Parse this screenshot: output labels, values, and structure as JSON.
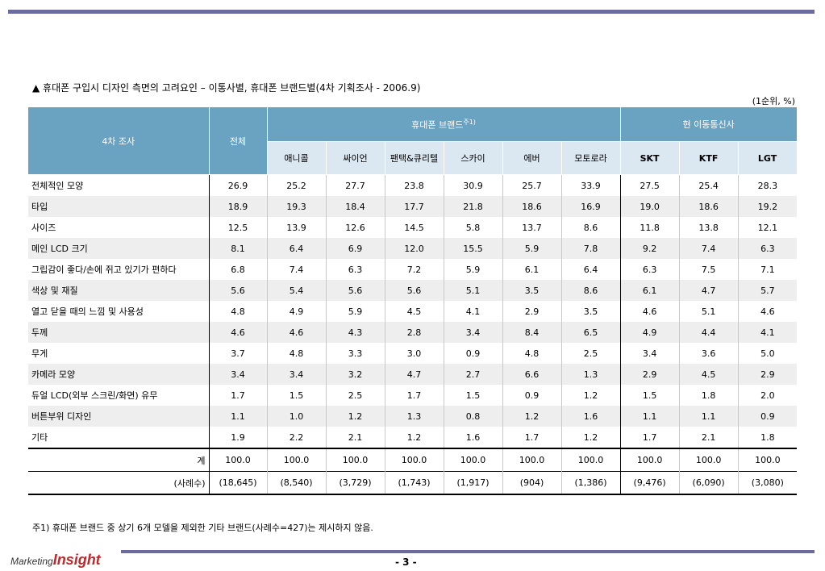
{
  "title": "▲ 휴대폰 구입시 디자인 측면의 고려요인 – 이통사별, 휴대폰 브랜드별(4차 기획조사 - 2006.9)",
  "unit": "(1순위, %)",
  "headers": {
    "survey": "4차 조사",
    "total": "전체",
    "brand_group": "휴대폰 브랜드",
    "brand_group_sup": "주1)",
    "carrier_group": "현 이동통신사",
    "brands": [
      "애니콜",
      "싸이언",
      "팬택&큐리텔",
      "스카이",
      "에버",
      "모토로라"
    ],
    "carriers": [
      "SKT",
      "KTF",
      "LGT"
    ]
  },
  "rows": [
    {
      "label": "전체적인 모양",
      "values": [
        "26.9",
        "25.2",
        "27.7",
        "23.8",
        "30.9",
        "25.7",
        "33.9",
        "27.5",
        "25.4",
        "28.3"
      ]
    },
    {
      "label": "타입",
      "values": [
        "18.9",
        "19.3",
        "18.4",
        "17.7",
        "21.8",
        "18.6",
        "16.9",
        "19.0",
        "18.6",
        "19.2"
      ]
    },
    {
      "label": "사이즈",
      "values": [
        "12.5",
        "13.9",
        "12.6",
        "14.5",
        "5.8",
        "13.7",
        "8.6",
        "11.8",
        "13.8",
        "12.1"
      ]
    },
    {
      "label": "메인 LCD 크기",
      "values": [
        "8.1",
        "6.4",
        "6.9",
        "12.0",
        "15.5",
        "5.9",
        "7.8",
        "9.2",
        "7.4",
        "6.3"
      ]
    },
    {
      "label": "그립감이 좋다/손에 쥐고 있기가 편하다",
      "values": [
        "6.8",
        "7.4",
        "6.3",
        "7.2",
        "5.9",
        "6.1",
        "6.4",
        "6.3",
        "7.5",
        "7.1"
      ]
    },
    {
      "label": "색상 및 재질",
      "values": [
        "5.6",
        "5.4",
        "5.6",
        "5.6",
        "5.1",
        "3.5",
        "8.6",
        "6.1",
        "4.7",
        "5.7"
      ]
    },
    {
      "label": "열고 닫을 때의 느낌 및 사용성",
      "values": [
        "4.8",
        "4.9",
        "5.9",
        "4.5",
        "4.1",
        "2.9",
        "3.5",
        "4.6",
        "5.1",
        "4.6"
      ]
    },
    {
      "label": "두께",
      "values": [
        "4.6",
        "4.6",
        "4.3",
        "2.8",
        "3.4",
        "8.4",
        "6.5",
        "4.9",
        "4.4",
        "4.1"
      ]
    },
    {
      "label": "무게",
      "values": [
        "3.7",
        "4.8",
        "3.3",
        "3.0",
        "0.9",
        "4.8",
        "2.5",
        "3.4",
        "3.6",
        "5.0"
      ]
    },
    {
      "label": "카메라 모양",
      "values": [
        "3.4",
        "3.4",
        "3.2",
        "4.7",
        "2.7",
        "6.6",
        "1.3",
        "2.9",
        "4.5",
        "2.9"
      ]
    },
    {
      "label": "듀얼 LCD(외부 스크린/화면) 유무",
      "values": [
        "1.7",
        "1.5",
        "2.5",
        "1.7",
        "1.5",
        "0.9",
        "1.2",
        "1.5",
        "1.8",
        "2.0"
      ]
    },
    {
      "label": "버튼부위 디자인",
      "values": [
        "1.1",
        "1.0",
        "1.2",
        "1.3",
        "0.8",
        "1.2",
        "1.6",
        "1.1",
        "1.1",
        "0.9"
      ]
    },
    {
      "label": "기타",
      "values": [
        "1.9",
        "2.2",
        "2.1",
        "1.2",
        "1.6",
        "1.7",
        "1.2",
        "1.7",
        "2.1",
        "1.8"
      ]
    }
  ],
  "sum_row": {
    "label": "계",
    "values": [
      "100.0",
      "100.0",
      "100.0",
      "100.0",
      "100.0",
      "100.0",
      "100.0",
      "100.0",
      "100.0",
      "100.0"
    ]
  },
  "count_row": {
    "label": "(사례수)",
    "values": [
      "(18,645)",
      "(8,540)",
      "(3,729)",
      "(1,743)",
      "(1,917)",
      "(904)",
      "(1,386)",
      "(9,476)",
      "(6,090)",
      "(3,080)"
    ]
  },
  "footnote": "주1) 휴대폰 브랜드 중 상기 6개 모델을 제외한 기타 브랜드(사례수=427)는 제시하지 않음.",
  "logo": {
    "marketing": "Marketing",
    "insight": "Insight"
  },
  "page_number": "- 3 -"
}
